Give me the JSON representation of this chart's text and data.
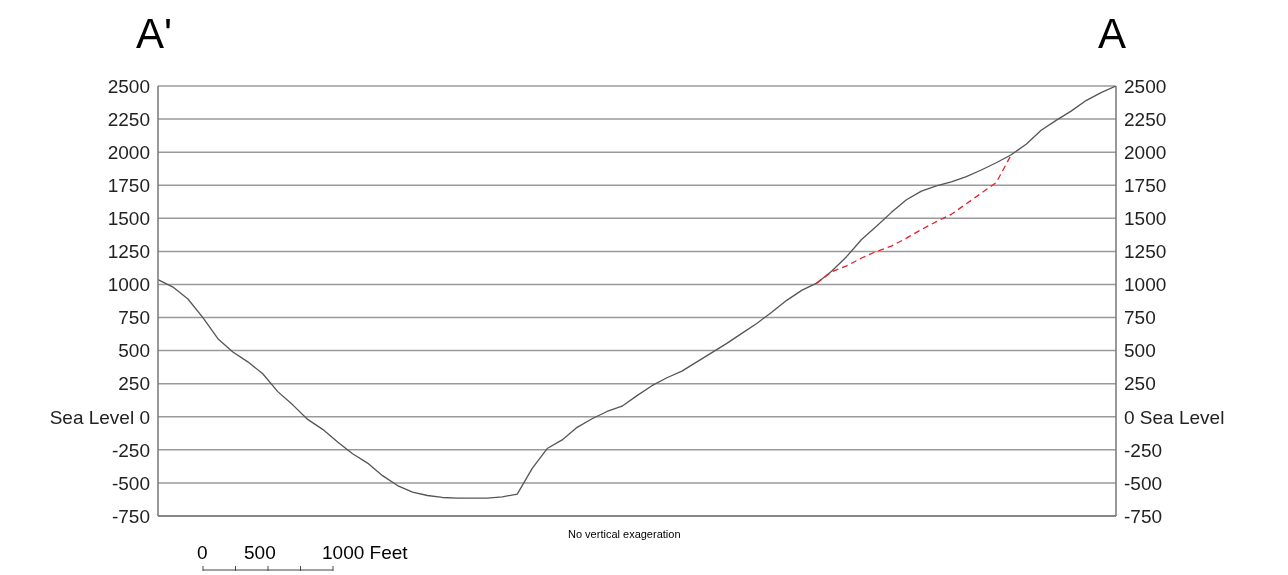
{
  "chart_data": {
    "type": "line",
    "annotations": [
      "A'",
      "A",
      "No vertical exageration",
      "0",
      "500",
      "1000 Feet"
    ],
    "categories": [
      null,
      null,
      null,
      null,
      null,
      null,
      null,
      null,
      null,
      null,
      null,
      null,
      null,
      null,
      null,
      null,
      null,
      null,
      null,
      null,
      null,
      null,
      null,
      null,
      null,
      null,
      null,
      null,
      null,
      null,
      null,
      null,
      null,
      null,
      null,
      null,
      null,
      null,
      null,
      null,
      null,
      null,
      null,
      null,
      null,
      null,
      null,
      null,
      null,
      null,
      null,
      null,
      null,
      null,
      null,
      null,
      null,
      null,
      null,
      null,
      null,
      null,
      null,
      null,
      null
    ],
    "series": [
      {
        "color": "#555555",
        "line_style": "solid",
        "values": [
          1037,
          980,
          890,
          750,
          590,
          490,
          415,
          325,
          190,
          90,
          -20,
          -95,
          -190,
          -280,
          -350,
          -445,
          -520,
          -570,
          -595,
          -610,
          -615,
          -615,
          -615,
          -605,
          -585,
          -390,
          -240,
          -175,
          -80,
          -15,
          40,
          80,
          160,
          235,
          295,
          345,
          415,
          485,
          555,
          630,
          705,
          790,
          880,
          955,
          1010,
          1100,
          1210,
          1340,
          1440,
          1545,
          1640,
          1705,
          1745,
          1775,
          1815,
          1865,
          1920,
          1980,
          2060,
          2165,
          2240,
          2310,
          2390,
          2450,
          2500
        ]
      },
      {
        "color": "#e8202a",
        "line_style": "dashed",
        "values": [
          null,
          null,
          null,
          null,
          null,
          null,
          null,
          null,
          null,
          null,
          null,
          null,
          null,
          null,
          null,
          null,
          null,
          null,
          null,
          null,
          null,
          null,
          null,
          null,
          null,
          null,
          null,
          null,
          null,
          null,
          null,
          null,
          null,
          null,
          null,
          null,
          null,
          null,
          null,
          null,
          null,
          null,
          null,
          null,
          1010,
          1095,
          1140,
          1200,
          1250,
          1290,
          1350,
          1415,
          1475,
          1530,
          1610,
          1690,
          1770,
          1980,
          null,
          null,
          null,
          null,
          null,
          null,
          null
        ]
      }
    ],
    "ylim": [
      -750,
      2500
    ],
    "yticks": [
      -750,
      -500,
      -250,
      {
        "value": 0,
        "label": "Sea Level 0"
      },
      250,
      500,
      750,
      1000,
      1250,
      1500,
      1750,
      2000,
      2250,
      2500
    ],
    "y2lim": [
      -750,
      2500
    ],
    "y2ticks": [
      -750,
      -500,
      -250,
      {
        "value": 0,
        "label": "0 Sea Level"
      },
      250,
      500,
      750,
      1000,
      1250,
      1500,
      1750,
      2000,
      2250,
      2500
    ],
    "grid": "y",
    "legend": false,
    "marker": "none"
  }
}
